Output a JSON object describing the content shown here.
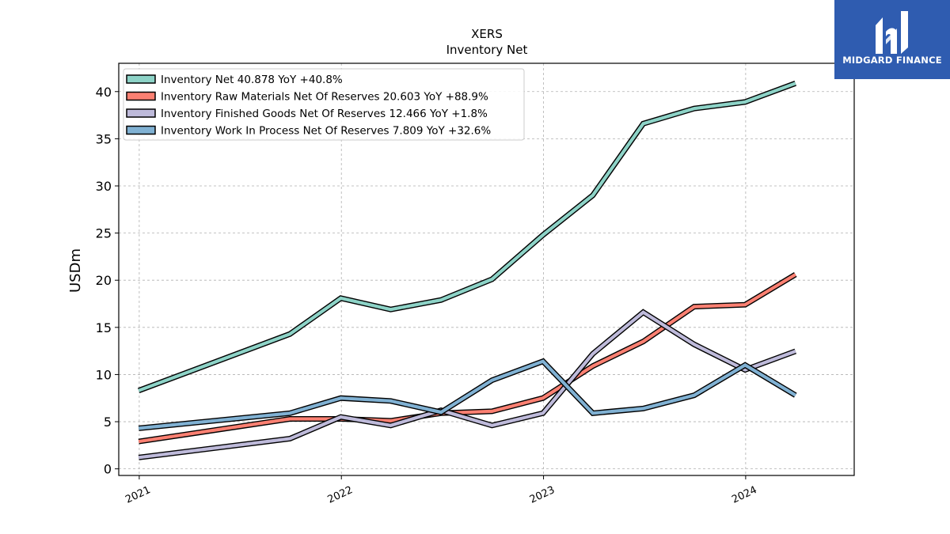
{
  "brand": {
    "name": "MIDGARD FINANCE",
    "bg_color": "#2f5cb0"
  },
  "chart_data": {
    "type": "line",
    "title": "XERS",
    "subtitle": "Inventory Net",
    "xlabel": "",
    "ylabel": "USDm",
    "ylim": [
      -0.7,
      43
    ],
    "xlim": [
      "2020-11-25",
      "2024-07-15"
    ],
    "x_ticks": [
      "2021",
      "2022",
      "2023",
      "2024"
    ],
    "x_tick_dates": [
      "2021-01-01",
      "2022-01-01",
      "2023-01-01",
      "2024-01-01"
    ],
    "y_ticks": [
      0,
      5,
      10,
      15,
      20,
      25,
      30,
      35,
      40
    ],
    "grid": true,
    "legend_position": "top-left",
    "x": [
      "2020-12-31",
      "2021-09-30",
      "2021-12-31",
      "2022-03-31",
      "2022-06-30",
      "2022-09-30",
      "2022-12-31",
      "2023-03-31",
      "2023-06-30",
      "2023-09-30",
      "2023-12-31",
      "2024-03-31"
    ],
    "series": [
      {
        "name": "Inventory Net",
        "legend": "Inventory Net  40.878 YoY +40.8%",
        "color": "#8dd3c7",
        "values": [
          8.3,
          14.3,
          18.1,
          16.9,
          17.9,
          20.1,
          24.8,
          29.0,
          36.6,
          38.2,
          38.9,
          40.878
        ]
      },
      {
        "name": "Inventory Raw Materials Net Of Reserves",
        "legend": "Inventory Raw Materials Net Of Reserves  20.603 YoY +88.9%",
        "color": "#fb8072",
        "values": [
          2.9,
          5.3,
          5.3,
          5.1,
          5.9,
          6.1,
          7.5,
          10.9,
          13.5,
          17.2,
          17.4,
          20.603
        ]
      },
      {
        "name": "Inventory Finished Goods Net Of Reserves",
        "legend": "Inventory Finished Goods Net Of Reserves  12.466 YoY +1.8%",
        "color": "#bebada",
        "values": [
          1.2,
          3.2,
          5.5,
          4.6,
          6.2,
          4.6,
          5.9,
          12.2,
          16.6,
          13.2,
          10.5,
          12.466
        ]
      },
      {
        "name": "Inventory Work In Process Net Of Reserves",
        "legend": "Inventory Work In Process Net Of Reserves  7.809 YoY +32.6%",
        "color": "#80b1d3",
        "values": [
          4.3,
          5.9,
          7.5,
          7.2,
          6.0,
          9.4,
          11.4,
          5.9,
          6.4,
          7.8,
          11.0,
          7.809
        ]
      }
    ]
  }
}
